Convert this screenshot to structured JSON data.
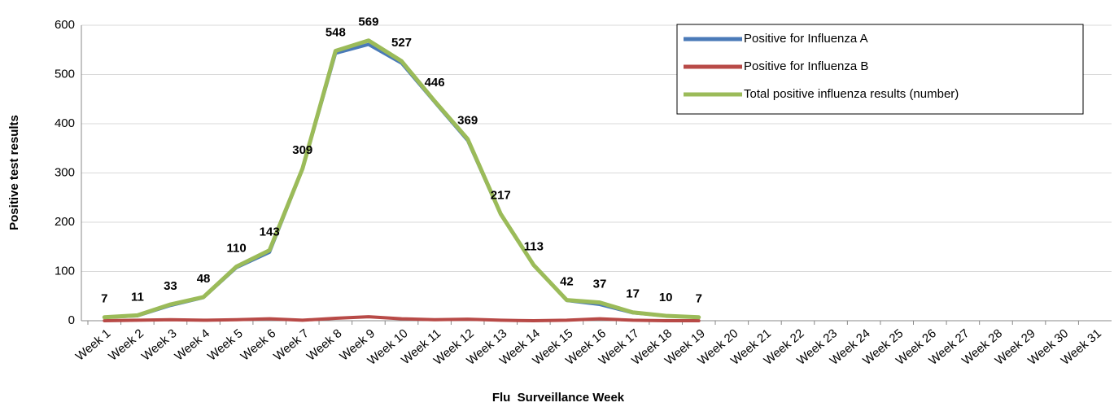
{
  "chart_data": {
    "type": "line",
    "x_label": "Flu  Surveillance Week",
    "y_label": "Positive test results",
    "categories": [
      "Week 1",
      "Week 2",
      "Week 3",
      "Week 4",
      "Week 5",
      "Week 6",
      "Week 7",
      "Week 8",
      "Week 9",
      "Week 10",
      "Week 11",
      "Week 12",
      "Week 13",
      "Week 14",
      "Week 15",
      "Week 16",
      "Week 17",
      "Week 18",
      "Week 19",
      "Week 20",
      "Week 21",
      "Week 22",
      "Week 23",
      "Week 24",
      "Week 25",
      "Week 26",
      "Week 27",
      "Week 28",
      "Week 29",
      "Week 30",
      "Week 31"
    ],
    "series": [
      {
        "name": "Positive for Influenza A",
        "color": "#4a7ab8",
        "values": [
          7,
          10,
          31,
          47,
          108,
          139,
          308,
          543,
          561,
          523,
          444,
          366,
          216,
          113,
          41,
          33,
          16,
          10,
          7,
          null,
          null,
          null,
          null,
          null,
          null,
          null,
          null,
          null,
          null,
          null,
          null
        ]
      },
      {
        "name": "Positive for Influenza B",
        "color": "#b84a47",
        "values": [
          0,
          1,
          2,
          1,
          2,
          4,
          1,
          5,
          8,
          4,
          2,
          3,
          1,
          0,
          1,
          4,
          1,
          0,
          0,
          null,
          null,
          null,
          null,
          null,
          null,
          null,
          null,
          null,
          null,
          null,
          null
        ]
      },
      {
        "name": "Total positive influenza results (number)",
        "color": "#9bbb59",
        "values": [
          7,
          11,
          33,
          48,
          110,
          143,
          309,
          548,
          569,
          527,
          446,
          369,
          217,
          113,
          42,
          37,
          17,
          10,
          7,
          null,
          null,
          null,
          null,
          null,
          null,
          null,
          null,
          null,
          null,
          null,
          null
        ],
        "data_labels": true
      }
    ],
    "ylim": [
      0,
      600
    ],
    "yticks": [
      0,
      100,
      200,
      300,
      400,
      500,
      600
    ],
    "grid": true,
    "legend": "top-right"
  }
}
